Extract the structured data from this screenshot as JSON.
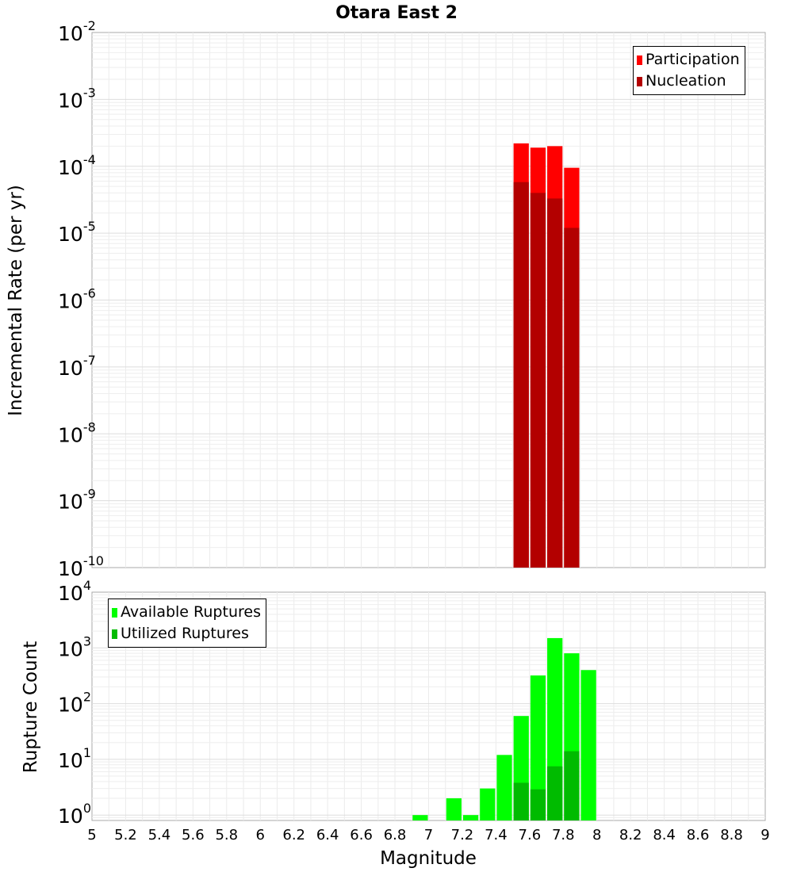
{
  "chart_data": [
    {
      "type": "bar",
      "title": "Otara East 2",
      "xlabel": "",
      "ylabel": "Incremental Rate (per yr)",
      "xlim": [
        5,
        9
      ],
      "ylim": [
        1e-10,
        0.01
      ],
      "yscale": "log",
      "ytick_exponents": [
        "-2",
        "-3",
        "-4",
        "-5",
        "-6",
        "-7",
        "-8",
        "-9",
        "-10"
      ],
      "bin_width": 0.1,
      "legend_position": "top-right",
      "series": [
        {
          "name": "Participation",
          "color": "#ff0000",
          "x": [
            7.55,
            7.65,
            7.75,
            7.85
          ],
          "values": [
            0.00022,
            0.00019,
            0.0002,
            9.5e-05
          ]
        },
        {
          "name": "Nucleation",
          "color": "#b30000",
          "x": [
            7.55,
            7.65,
            7.75,
            7.85
          ],
          "values": [
            5.8e-05,
            4e-05,
            3.3e-05,
            1.2e-05
          ]
        }
      ]
    },
    {
      "type": "bar",
      "title": "",
      "xlabel": "Magnitude",
      "ylabel": "Rupture Count",
      "xlim": [
        5,
        9
      ],
      "ylim": [
        0.8,
        10000
      ],
      "yscale": "log",
      "ytick_exponents": [
        "4",
        "3",
        "2",
        "1",
        "0"
      ],
      "xtick_labels": [
        "5",
        "5.2",
        "5.4",
        "5.6",
        "5.8",
        "6",
        "6.2",
        "6.4",
        "6.6",
        "6.8",
        "7",
        "7.2",
        "7.4",
        "7.6",
        "7.8",
        "8",
        "8.2",
        "8.4",
        "8.6",
        "8.8",
        "9"
      ],
      "bin_width": 0.1,
      "legend_position": "top-left",
      "series": [
        {
          "name": "Available Ruptures",
          "color": "#00ff00",
          "x": [
            6.95,
            7.15,
            7.25,
            7.35,
            7.45,
            7.55,
            7.65,
            7.75,
            7.85,
            7.95
          ],
          "values": [
            1,
            2,
            1,
            3,
            12,
            60,
            320,
            1500,
            800,
            400
          ]
        },
        {
          "name": "Utilized Ruptures",
          "color": "#00bb00",
          "x": [
            7.55,
            7.65,
            7.75,
            7.85
          ],
          "values": [
            3.8,
            2.9,
            7.5,
            14
          ]
        }
      ]
    }
  ],
  "tick_base": "10"
}
